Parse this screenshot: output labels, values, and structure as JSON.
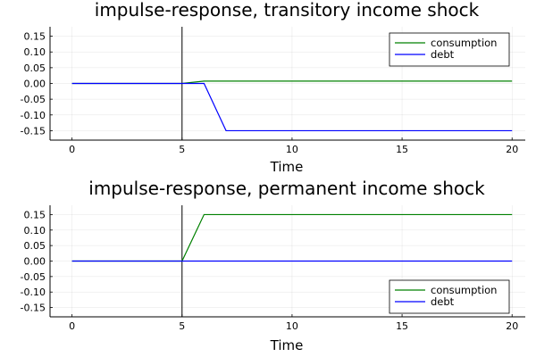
{
  "chart_data": [
    {
      "type": "line",
      "title": "impulse-response, transitory income shock",
      "xlabel": "Time",
      "ylabel": "",
      "xlim": [
        -1,
        20.6
      ],
      "ylim": [
        -0.18,
        0.18
      ],
      "xticks": [
        0,
        5,
        10,
        15,
        20
      ],
      "yticks": [
        0.15,
        0.1,
        0.05,
        0.0,
        -0.05,
        -0.1,
        -0.15
      ],
      "xtick_labels": [
        "0",
        "5",
        "10",
        "15",
        "20"
      ],
      "ytick_labels": [
        "0.15",
        "0.10",
        "0.05",
        "0.00",
        "-0.05",
        "-0.10",
        "-0.15"
      ],
      "grid": true,
      "legend_position": "top-right",
      "vline": 5,
      "series": [
        {
          "name": "consumption",
          "color": "#008000",
          "x": [
            0,
            1,
            2,
            3,
            4,
            5,
            6,
            7,
            8,
            9,
            10,
            11,
            12,
            13,
            14,
            15,
            16,
            17,
            18,
            19,
            20
          ],
          "values": [
            0,
            0,
            0,
            0,
            0,
            0,
            0.0075,
            0.0075,
            0.0075,
            0.0075,
            0.0075,
            0.0075,
            0.0075,
            0.0075,
            0.0075,
            0.0075,
            0.0075,
            0.0075,
            0.0075,
            0.0075,
            0.0075
          ]
        },
        {
          "name": "debt",
          "color": "#0000ff",
          "x": [
            0,
            1,
            2,
            3,
            4,
            5,
            6,
            7,
            8,
            9,
            10,
            11,
            12,
            13,
            14,
            15,
            16,
            17,
            18,
            19,
            20
          ],
          "values": [
            0,
            0,
            0,
            0,
            0,
            0,
            0,
            -0.15,
            -0.15,
            -0.15,
            -0.15,
            -0.15,
            -0.15,
            -0.15,
            -0.15,
            -0.15,
            -0.15,
            -0.15,
            -0.15,
            -0.15,
            -0.15
          ]
        }
      ]
    },
    {
      "type": "line",
      "title": "impulse-response, permanent income shock",
      "xlabel": "Time",
      "ylabel": "",
      "xlim": [
        -1,
        20.6
      ],
      "ylim": [
        -0.18,
        0.18
      ],
      "xticks": [
        0,
        5,
        10,
        15,
        20
      ],
      "yticks": [
        0.15,
        0.1,
        0.05,
        0.0,
        -0.05,
        -0.1,
        -0.15
      ],
      "xtick_labels": [
        "0",
        "5",
        "10",
        "15",
        "20"
      ],
      "ytick_labels": [
        "0.15",
        "0.10",
        "0.05",
        "0.00",
        "-0.05",
        "-0.10",
        "-0.15"
      ],
      "grid": true,
      "legend_position": "bottom-right",
      "vline": 5,
      "series": [
        {
          "name": "consumption",
          "color": "#008000",
          "x": [
            0,
            1,
            2,
            3,
            4,
            5,
            6,
            7,
            8,
            9,
            10,
            11,
            12,
            13,
            14,
            15,
            16,
            17,
            18,
            19,
            20
          ],
          "values": [
            0,
            0,
            0,
            0,
            0,
            0,
            0.15,
            0.15,
            0.15,
            0.15,
            0.15,
            0.15,
            0.15,
            0.15,
            0.15,
            0.15,
            0.15,
            0.15,
            0.15,
            0.15,
            0.15
          ]
        },
        {
          "name": "debt",
          "color": "#0000ff",
          "x": [
            0,
            1,
            2,
            3,
            4,
            5,
            6,
            7,
            8,
            9,
            10,
            11,
            12,
            13,
            14,
            15,
            16,
            17,
            18,
            19,
            20
          ],
          "values": [
            0,
            0,
            0,
            0,
            0,
            0,
            0,
            0,
            0,
            0,
            0,
            0,
            0,
            0,
            0,
            0,
            0,
            0,
            0,
            0,
            0
          ]
        }
      ]
    }
  ]
}
